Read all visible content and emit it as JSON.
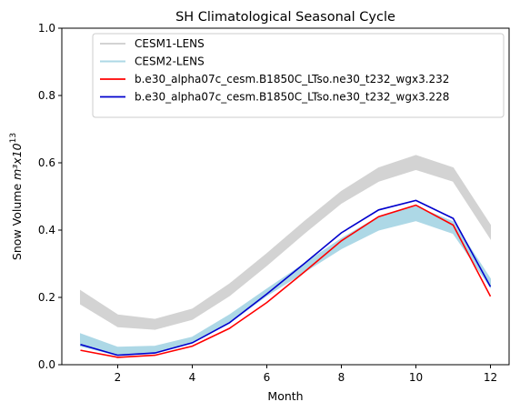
{
  "chart_data": {
    "type": "line",
    "title": "SH Climatological Seasonal Cycle",
    "xlabel": "Month",
    "ylabel_main": "Snow Volume ",
    "ylabel_unit": "m³x10",
    "ylabel_exp": "13",
    "xlim": [
      0.5,
      12.5
    ],
    "ylim": [
      0.0,
      1.0
    ],
    "xticks": [
      2,
      4,
      6,
      8,
      10,
      12
    ],
    "yticks": [
      0.0,
      0.2,
      0.4,
      0.6,
      0.8,
      1.0
    ],
    "xtick_labels": [
      "2",
      "4",
      "6",
      "8",
      "10",
      "12"
    ],
    "ytick_labels": [
      "0.0",
      "0.2",
      "0.4",
      "0.6",
      "0.8",
      "1.0"
    ],
    "grid": false,
    "legend_position": "top-right",
    "x": [
      1,
      2,
      3,
      4,
      5,
      6,
      7,
      8,
      9,
      10,
      11,
      12
    ],
    "series": [
      {
        "name": "CESM1-LENS",
        "kind": "band",
        "color": "#d3d3d3",
        "lower": [
          0.18,
          0.113,
          0.105,
          0.135,
          0.205,
          0.295,
          0.39,
          0.48,
          0.545,
          0.58,
          0.545,
          0.375
        ],
        "upper": [
          0.22,
          0.148,
          0.135,
          0.165,
          0.24,
          0.33,
          0.425,
          0.515,
          0.585,
          0.622,
          0.585,
          0.415
        ]
      },
      {
        "name": "CESM2-LENS",
        "kind": "band",
        "color": "#add8e6",
        "lower": [
          0.055,
          0.028,
          0.035,
          0.065,
          0.125,
          0.205,
          0.275,
          0.345,
          0.4,
          0.428,
          0.39,
          0.23
        ],
        "upper": [
          0.092,
          0.052,
          0.055,
          0.082,
          0.148,
          0.225,
          0.3,
          0.375,
          0.44,
          0.47,
          0.425,
          0.255
        ]
      },
      {
        "name": "b.e30_alpha07c_cesm.B1850C_LTso.ne30_t232_wgx3.232",
        "kind": "line",
        "color": "#ff0000",
        "values": [
          0.043,
          0.022,
          0.028,
          0.055,
          0.108,
          0.185,
          0.275,
          0.368,
          0.44,
          0.474,
          0.415,
          0.203
        ]
      },
      {
        "name": "b.e30_alpha07c_cesm.B1850C_LTso.ne30_t232_wgx3.228",
        "kind": "line",
        "color": "#0000cd",
        "values": [
          0.06,
          0.028,
          0.035,
          0.065,
          0.125,
          0.21,
          0.3,
          0.392,
          0.46,
          0.488,
          0.435,
          0.232
        ]
      }
    ]
  }
}
